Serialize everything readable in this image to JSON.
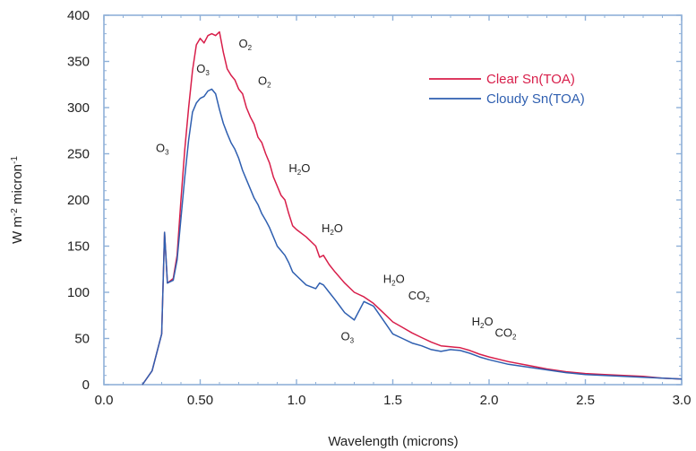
{
  "chart_data": {
    "type": "line",
    "xlabel": "Wavelength (microns)",
    "ylabel_main": "W m",
    "ylabel_sup1": "-2",
    "ylabel_mid": " micron",
    "ylabel_sup2": "-1",
    "xlim": [
      0.0,
      3.0
    ],
    "ylim": [
      0,
      400
    ],
    "x_ticks": [
      "0.0",
      "0.50",
      "1.0",
      "1.5",
      "2.0",
      "2.5",
      "3.0"
    ],
    "x_tick_values": [
      0.0,
      0.5,
      1.0,
      1.5,
      2.0,
      2.5,
      3.0
    ],
    "y_ticks": [
      "0",
      "50",
      "100",
      "150",
      "200",
      "250",
      "300",
      "350",
      "400"
    ],
    "y_tick_values": [
      0,
      50,
      100,
      150,
      200,
      250,
      300,
      350,
      400
    ],
    "grid": false,
    "legend_position": "top-right",
    "series": [
      {
        "name": "Clear Sn(TOA)",
        "color": "#d81e4a",
        "points": [
          [
            0.2,
            0
          ],
          [
            0.25,
            15
          ],
          [
            0.3,
            55
          ],
          [
            0.315,
            165
          ],
          [
            0.33,
            110
          ],
          [
            0.36,
            115
          ],
          [
            0.38,
            140
          ],
          [
            0.4,
            200
          ],
          [
            0.42,
            255
          ],
          [
            0.44,
            300
          ],
          [
            0.46,
            340
          ],
          [
            0.48,
            368
          ],
          [
            0.5,
            375
          ],
          [
            0.52,
            370
          ],
          [
            0.54,
            378
          ],
          [
            0.56,
            380
          ],
          [
            0.58,
            378
          ],
          [
            0.6,
            382
          ],
          [
            0.62,
            360
          ],
          [
            0.64,
            342
          ],
          [
            0.66,
            335
          ],
          [
            0.68,
            330
          ],
          [
            0.7,
            320
          ],
          [
            0.72,
            315
          ],
          [
            0.74,
            300
          ],
          [
            0.76,
            290
          ],
          [
            0.78,
            282
          ],
          [
            0.8,
            268
          ],
          [
            0.82,
            262
          ],
          [
            0.84,
            250
          ],
          [
            0.86,
            240
          ],
          [
            0.88,
            225
          ],
          [
            0.9,
            215
          ],
          [
            0.92,
            205
          ],
          [
            0.94,
            200
          ],
          [
            0.96,
            185
          ],
          [
            0.98,
            172
          ],
          [
            1.0,
            168
          ],
          [
            1.05,
            160
          ],
          [
            1.1,
            150
          ],
          [
            1.12,
            138
          ],
          [
            1.14,
            140
          ],
          [
            1.17,
            130
          ],
          [
            1.2,
            122
          ],
          [
            1.25,
            110
          ],
          [
            1.3,
            100
          ],
          [
            1.35,
            95
          ],
          [
            1.4,
            88
          ],
          [
            1.45,
            78
          ],
          [
            1.5,
            68
          ],
          [
            1.55,
            62
          ],
          [
            1.6,
            56
          ],
          [
            1.65,
            51
          ],
          [
            1.7,
            46
          ],
          [
            1.75,
            42
          ],
          [
            1.8,
            41
          ],
          [
            1.85,
            40
          ],
          [
            1.9,
            37
          ],
          [
            1.95,
            33
          ],
          [
            2.0,
            30
          ],
          [
            2.1,
            25
          ],
          [
            2.2,
            21
          ],
          [
            2.3,
            17
          ],
          [
            2.4,
            14
          ],
          [
            2.5,
            12
          ],
          [
            2.6,
            11
          ],
          [
            2.7,
            10
          ],
          [
            2.8,
            9
          ],
          [
            2.9,
            7
          ],
          [
            3.0,
            6
          ]
        ]
      },
      {
        "name": "Cloudy Sn(TOA)",
        "color": "#2f5fb0",
        "points": [
          [
            0.2,
            0
          ],
          [
            0.25,
            15
          ],
          [
            0.3,
            55
          ],
          [
            0.315,
            165
          ],
          [
            0.33,
            110
          ],
          [
            0.36,
            113
          ],
          [
            0.38,
            135
          ],
          [
            0.4,
            180
          ],
          [
            0.42,
            225
          ],
          [
            0.44,
            265
          ],
          [
            0.46,
            295
          ],
          [
            0.48,
            305
          ],
          [
            0.5,
            310
          ],
          [
            0.52,
            312
          ],
          [
            0.54,
            318
          ],
          [
            0.56,
            320
          ],
          [
            0.58,
            315
          ],
          [
            0.6,
            298
          ],
          [
            0.62,
            283
          ],
          [
            0.64,
            272
          ],
          [
            0.66,
            262
          ],
          [
            0.68,
            255
          ],
          [
            0.7,
            245
          ],
          [
            0.72,
            232
          ],
          [
            0.74,
            222
          ],
          [
            0.76,
            212
          ],
          [
            0.78,
            202
          ],
          [
            0.8,
            195
          ],
          [
            0.82,
            185
          ],
          [
            0.84,
            178
          ],
          [
            0.86,
            170
          ],
          [
            0.88,
            160
          ],
          [
            0.9,
            150
          ],
          [
            0.92,
            145
          ],
          [
            0.94,
            140
          ],
          [
            0.96,
            132
          ],
          [
            0.98,
            122
          ],
          [
            1.0,
            118
          ],
          [
            1.05,
            108
          ],
          [
            1.1,
            104
          ],
          [
            1.12,
            110
          ],
          [
            1.14,
            108
          ],
          [
            1.17,
            100
          ],
          [
            1.2,
            92
          ],
          [
            1.25,
            78
          ],
          [
            1.3,
            70
          ],
          [
            1.35,
            90
          ],
          [
            1.4,
            85
          ],
          [
            1.45,
            70
          ],
          [
            1.5,
            55
          ],
          [
            1.55,
            50
          ],
          [
            1.6,
            45
          ],
          [
            1.65,
            42
          ],
          [
            1.7,
            38
          ],
          [
            1.75,
            36
          ],
          [
            1.8,
            38
          ],
          [
            1.85,
            37
          ],
          [
            1.9,
            34
          ],
          [
            1.95,
            30
          ],
          [
            2.0,
            27
          ],
          [
            2.1,
            22
          ],
          [
            2.2,
            19
          ],
          [
            2.3,
            16
          ],
          [
            2.4,
            13
          ],
          [
            2.5,
            11
          ],
          [
            2.6,
            10
          ],
          [
            2.7,
            9
          ],
          [
            2.8,
            8
          ],
          [
            2.9,
            7
          ],
          [
            3.0,
            6
          ]
        ]
      }
    ],
    "annotations": [
      {
        "base": "O",
        "sub": "3",
        "x": 0.27,
        "y": 252
      },
      {
        "base": "O",
        "sub": "3",
        "x": 0.48,
        "y": 338
      },
      {
        "base": "O",
        "sub": "2",
        "x": 0.7,
        "y": 365
      },
      {
        "base": "O",
        "sub": "2",
        "x": 0.8,
        "y": 325
      },
      {
        "base": "H",
        "sub": "2",
        "tail": "O",
        "x": 0.96,
        "y": 230
      },
      {
        "base": "H",
        "sub": "2",
        "tail": "O",
        "x": 1.13,
        "y": 165
      },
      {
        "base": "H",
        "sub": "2",
        "tail": "O",
        "x": 1.45,
        "y": 110
      },
      {
        "base": "CO",
        "sub": "2",
        "x": 1.58,
        "y": 92
      },
      {
        "base": "O",
        "sub": "3",
        "x": 1.23,
        "y": 48
      },
      {
        "base": "H",
        "sub": "2",
        "tail": "O",
        "x": 1.91,
        "y": 64
      },
      {
        "base": "CO",
        "sub": "2",
        "x": 2.03,
        "y": 52
      }
    ]
  }
}
